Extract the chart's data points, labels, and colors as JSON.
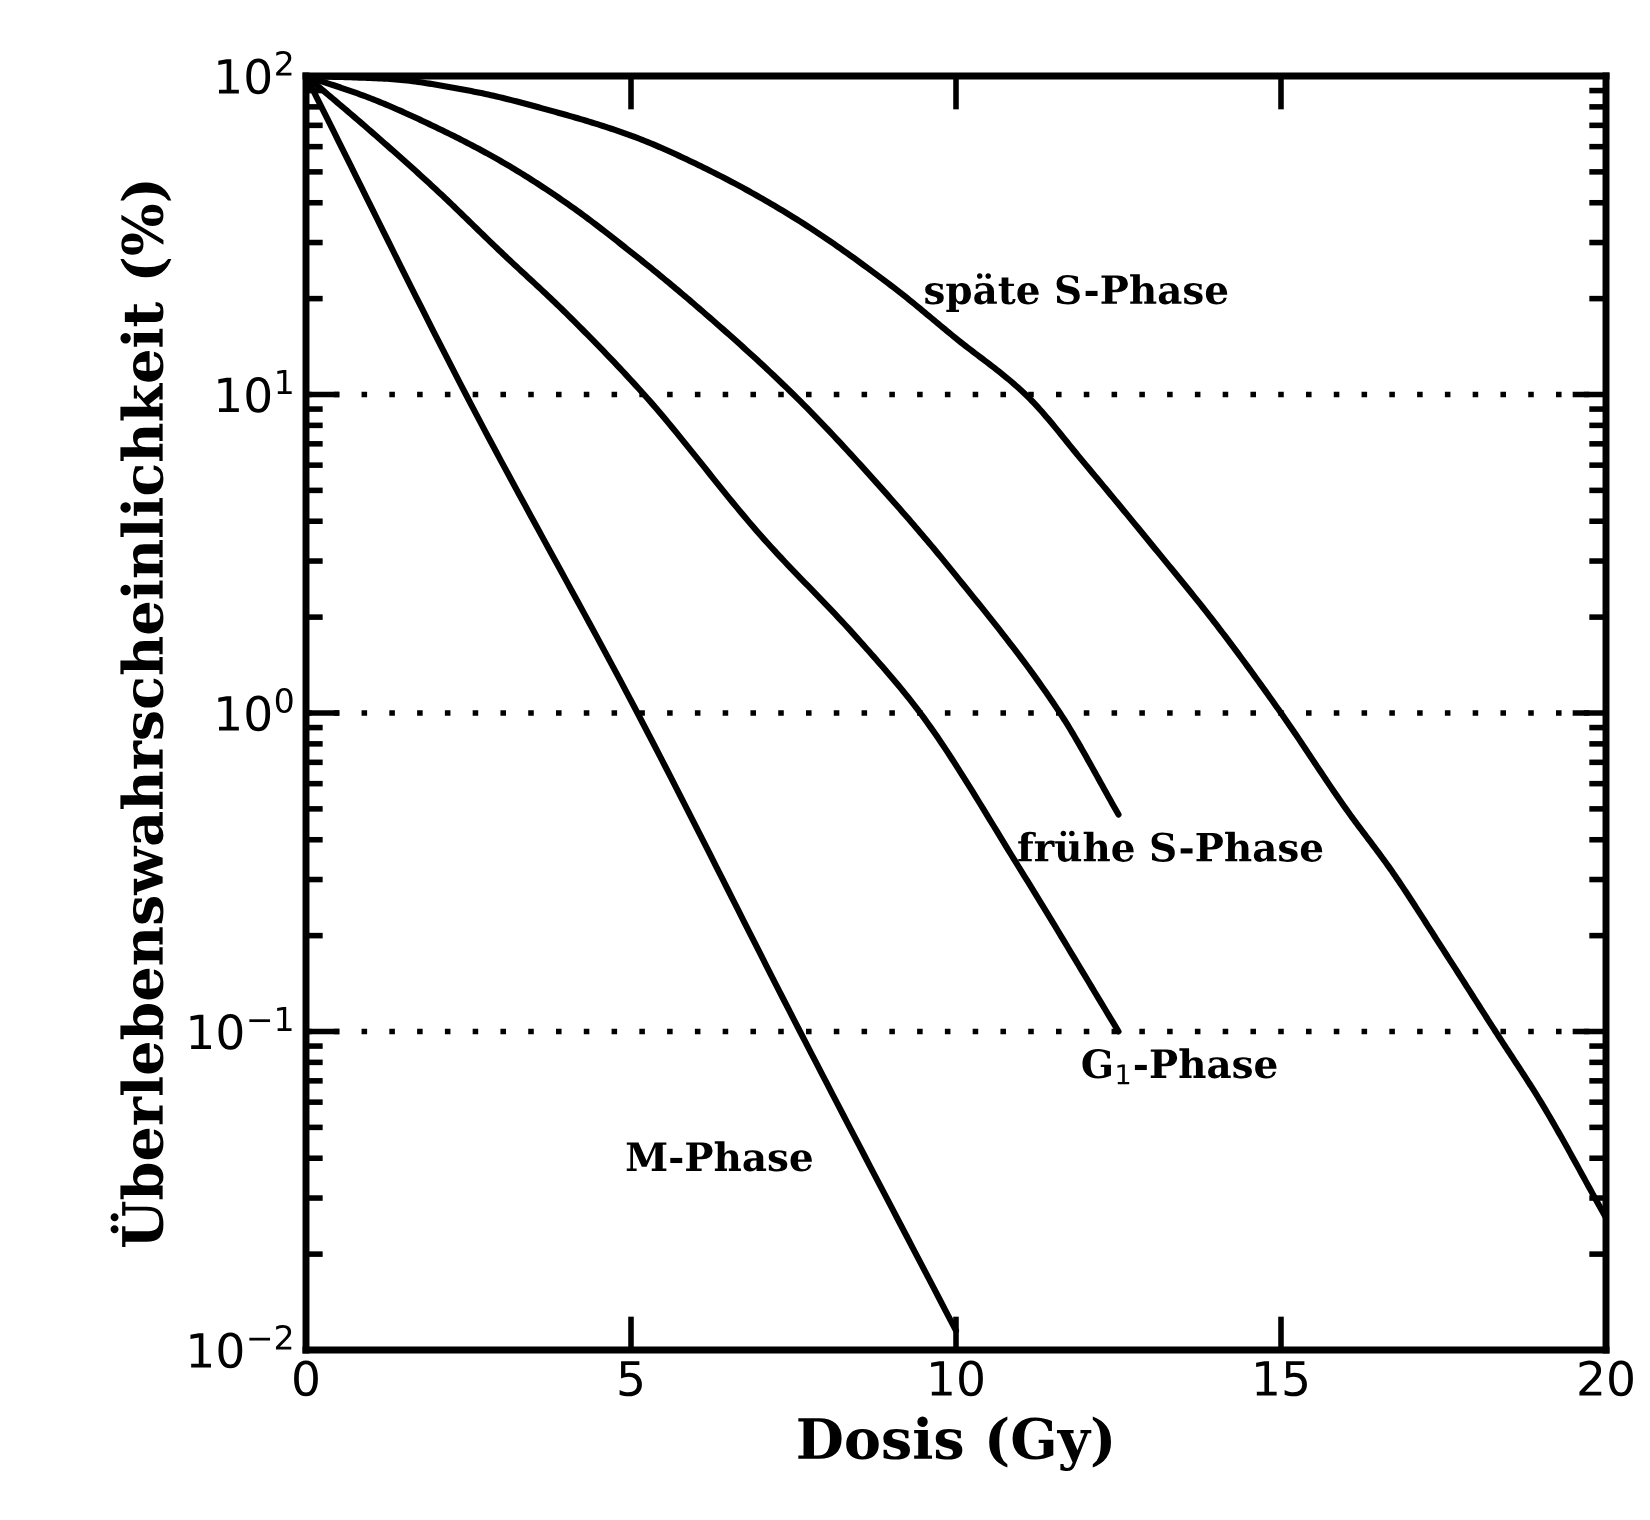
{
  "chart_data": {
    "type": "line",
    "xlabel": "Dosis (Gy)",
    "ylabel": "Überlebenswahrscheinlichkeit (%)",
    "log": "y",
    "xlim": [
      0,
      20
    ],
    "ylim": [
      0.01,
      100
    ],
    "xticks": [
      0,
      5,
      10,
      15,
      20
    ],
    "yticks": [
      {
        "value": 0.01,
        "label": "10$^{−2}$"
      },
      {
        "value": 0.1,
        "label": "10$^{−1}$"
      },
      {
        "value": 1,
        "label": "10$^{0}$"
      },
      {
        "value": 10,
        "label": "10$^{1}$"
      },
      {
        "value": 100,
        "label": "10$^{2}$"
      }
    ],
    "grid": false,
    "legend": false,
    "marker": "none",
    "line_style": "solid",
    "series": [
      {
        "name": "M-Phase",
        "color": "#000000",
        "x": [
          0,
          2.46,
          5.1,
          7.6,
          10
        ],
        "values": [
          100,
          10,
          1,
          0.1,
          0.0115
        ]
      },
      {
        "name": "G$_{1}$-Phase",
        "color": "#000000",
        "x": [
          0,
          1,
          2,
          3,
          4,
          5.2,
          7,
          8.5,
          9.45,
          11,
          12.5
        ],
        "values": [
          100,
          67,
          44,
          28,
          18,
          10,
          3.6,
          1.7,
          1,
          0.32,
          0.1
        ]
      },
      {
        "name": "frühe S-Phase",
        "color": "#000000",
        "x": [
          0,
          1,
          2,
          3,
          4,
          5,
          6,
          7.5,
          9,
          10,
          11.6,
          12.5
        ],
        "values": [
          100,
          85,
          69,
          54,
          40,
          28,
          19,
          10,
          4.7,
          2.7,
          1,
          0.48
        ]
      },
      {
        "name": "späte S-Phase",
        "color": "#000000",
        "x": [
          0,
          1.25,
          2.5,
          3.75,
          5,
          6.25,
          7.5,
          9,
          10,
          11.07,
          12,
          13,
          14,
          15,
          16,
          16.7,
          17.5,
          18.3,
          19,
          20
        ],
        "values": [
          100,
          98,
          90,
          78,
          65,
          50,
          36,
          22,
          15,
          10,
          6,
          3.4,
          1.9,
          1,
          0.5,
          0.32,
          0.18,
          0.1,
          0.06,
          0.026
        ]
      }
    ],
    "ref_lines": [
      {
        "axis": "y",
        "value": 10,
        "color": "#000000",
        "line_style": "dotted"
      },
      {
        "axis": "y",
        "value": 1,
        "color": "#000000",
        "line_style": "dotted"
      },
      {
        "axis": "y",
        "value": 0.1,
        "color": "#000000",
        "line_style": "dotted"
      }
    ]
  }
}
